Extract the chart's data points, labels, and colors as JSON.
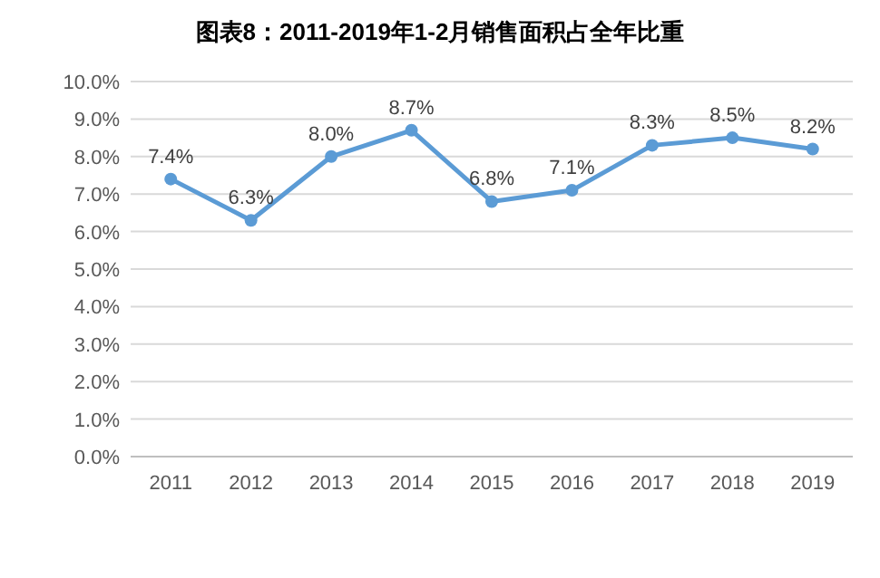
{
  "chart_data": {
    "type": "line",
    "title": "图表8：2011-2019年1-2月销售面积占全年比重",
    "categories": [
      "2011",
      "2012",
      "2013",
      "2014",
      "2015",
      "2016",
      "2017",
      "2018",
      "2019"
    ],
    "series": [
      {
        "color": "#5b9bd5",
        "values": [
          7.4,
          6.3,
          8.0,
          8.7,
          6.8,
          7.1,
          8.3,
          8.5,
          8.2
        ],
        "value_labels": [
          "7.4%",
          "6.3%",
          "8.0%",
          "8.7%",
          "6.8%",
          "7.1%",
          "8.3%",
          "8.5%",
          "8.2%"
        ]
      }
    ],
    "ylim": [
      0,
      10
    ],
    "yticks": [
      {
        "value": 0,
        "label": "0.0%"
      },
      {
        "value": 1,
        "label": "1.0%"
      },
      {
        "value": 2,
        "label": "2.0%"
      },
      {
        "value": 3,
        "label": "3.0%"
      },
      {
        "value": 4,
        "label": "4.0%"
      },
      {
        "value": 5,
        "label": "5.0%"
      },
      {
        "value": 6,
        "label": "6.0%"
      },
      {
        "value": 7,
        "label": "7.0%"
      },
      {
        "value": 8,
        "label": "8.0%"
      },
      {
        "value": 9,
        "label": "9.0%"
      },
      {
        "value": 10,
        "label": "10.0%"
      }
    ],
    "grid": "y",
    "marker": "circle",
    "line_style": "solid"
  }
}
